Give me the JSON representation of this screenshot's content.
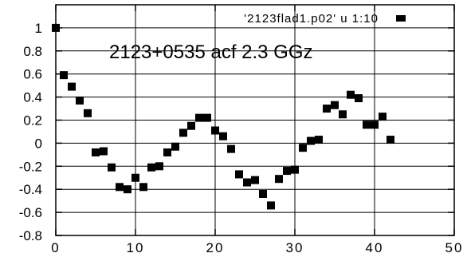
{
  "chart_data": {
    "type": "scatter",
    "title": "2123+0535 acf  2.3 GGz",
    "xlabel": "",
    "ylabel": "",
    "xlim": [
      0,
      50
    ],
    "ylim": [
      -0.8,
      1.2
    ],
    "xticks": [
      "0",
      "10",
      "20",
      "30",
      "40",
      "50"
    ],
    "yticks": [
      "1",
      "0.8",
      "0.6",
      "0.4",
      "0.2",
      "0",
      "-0.2",
      "-0.4",
      "-0.6",
      "-0.8"
    ],
    "grid": true,
    "legend_position": "top-right",
    "marker": "square",
    "marker_color": "#000000",
    "series": [
      {
        "name": "'2123flad1.p02' u 1:10",
        "x": [
          0,
          1,
          2,
          3,
          4,
          5,
          6,
          7,
          8,
          9,
          10,
          11,
          12,
          13,
          14,
          15,
          16,
          17,
          18,
          19,
          20,
          21,
          22,
          23,
          24,
          25,
          26,
          27,
          28,
          29,
          30,
          31,
          32,
          33,
          34,
          35,
          36,
          37,
          38,
          39,
          40,
          41,
          42
        ],
        "y": [
          1.0,
          0.59,
          0.49,
          0.37,
          0.26,
          -0.08,
          -0.07,
          -0.21,
          -0.38,
          -0.4,
          -0.3,
          -0.38,
          -0.21,
          -0.2,
          -0.08,
          -0.03,
          0.09,
          0.15,
          0.22,
          0.22,
          0.11,
          0.06,
          -0.05,
          -0.27,
          -0.34,
          -0.32,
          -0.44,
          -0.54,
          -0.31,
          -0.24,
          -0.23,
          -0.04,
          0.02,
          0.03,
          0.3,
          0.33,
          0.25,
          0.42,
          0.39,
          0.16,
          0.16,
          0.23,
          0.03
        ]
      }
    ]
  }
}
